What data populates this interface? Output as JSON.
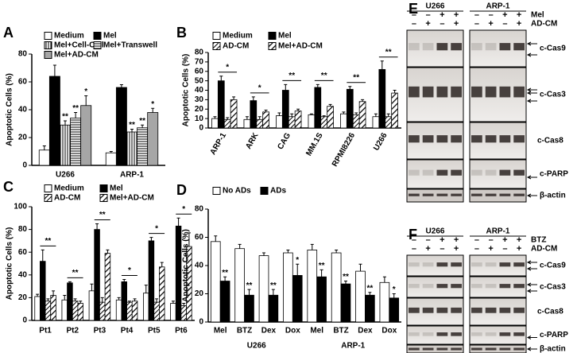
{
  "chart_data": [
    {
      "type": "bar",
      "panel": "A",
      "ylabel": "Apoptotic Cells (%)",
      "categories": [
        "U266",
        "ARP-1"
      ],
      "series": [
        {
          "name": "Medium",
          "color": "#ffffff",
          "pattern": "solid",
          "values": [
            11,
            9
          ],
          "errors": [
            3,
            1
          ]
        },
        {
          "name": "Mel",
          "color": "#000000",
          "pattern": "solid",
          "values": [
            64,
            56
          ],
          "errors": [
            8,
            2
          ]
        },
        {
          "name": "Mel+Cell-Cell",
          "color": "#000000",
          "pattern": "vertical",
          "values": [
            29,
            24
          ],
          "errors": [
            3,
            2
          ],
          "significance": [
            "**",
            "**"
          ]
        },
        {
          "name": "Mel+Transwell",
          "color": "#000000",
          "pattern": "horizontal",
          "values": [
            34,
            27
          ],
          "errors": [
            4,
            2
          ],
          "significance": [
            "**",
            "**"
          ]
        },
        {
          "name": "Mel+AD-CM",
          "color": "#a6a6a6",
          "pattern": "solid",
          "values": [
            43,
            38
          ],
          "errors": [
            7,
            3
          ],
          "significance": [
            "*",
            "*"
          ]
        }
      ],
      "ylim": [
        0,
        80
      ],
      "yticks": [
        0,
        20,
        40,
        60,
        80
      ]
    },
    {
      "type": "bar",
      "panel": "B",
      "ylabel": "Apoptotic Cells (%)",
      "categories": [
        "ARP-1",
        "ARK",
        "CAG",
        "MM.1S",
        "RPMI8226",
        "U266"
      ],
      "series": [
        {
          "name": "Medium",
          "color": "#ffffff",
          "pattern": "solid",
          "values": [
            10,
            9,
            13,
            14,
            15,
            12
          ],
          "errors": [
            2,
            3,
            3,
            1,
            2,
            3
          ]
        },
        {
          "name": "Mel",
          "color": "#000000",
          "pattern": "solid",
          "values": [
            50,
            29,
            40,
            43,
            41,
            62
          ],
          "errors": [
            5,
            4,
            6,
            3,
            3,
            9
          ]
        },
        {
          "name": "AD-CM",
          "color": "#000000",
          "pattern": "diagonal",
          "values": [
            9,
            9,
            12,
            12,
            14,
            12
          ],
          "errors": [
            2,
            3,
            3,
            1,
            2,
            3
          ]
        },
        {
          "name": "Mel+AD-CM",
          "color": "#000000",
          "pattern": "diagonal-wide",
          "values": [
            30,
            17,
            18,
            23,
            28,
            37
          ],
          "errors": [
            3,
            2,
            2,
            2,
            2,
            3
          ]
        }
      ],
      "significance": [
        "*",
        "*",
        "**",
        "**",
        "**",
        "**"
      ],
      "ylim": [
        0,
        80
      ],
      "yticks": [
        0,
        10,
        20,
        30,
        40,
        50,
        60,
        70,
        80
      ]
    },
    {
      "type": "bar",
      "panel": "C",
      "ylabel": "Apoptotic Cells (%)",
      "categories": [
        "Pt1",
        "Pt2",
        "Pt3",
        "Pt4",
        "Pt5",
        "Pt6"
      ],
      "series": [
        {
          "name": "Medium",
          "color": "#ffffff",
          "pattern": "solid",
          "values": [
            21,
            18,
            26,
            18,
            24,
            15
          ],
          "errors": [
            2,
            4,
            6,
            2,
            7,
            2
          ]
        },
        {
          "name": "Mel",
          "color": "#000000",
          "pattern": "solid",
          "values": [
            52,
            33,
            80,
            34,
            70,
            83
          ],
          "errors": [
            10,
            1,
            5,
            2,
            3,
            7
          ]
        },
        {
          "name": "AD-CM",
          "color": "#000000",
          "pattern": "diagonal",
          "values": [
            17,
            17,
            16,
            16,
            16,
            13
          ],
          "errors": [
            2,
            2,
            4,
            1,
            3,
            2
          ]
        },
        {
          "name": "Mel+AD-CM",
          "color": "#000000",
          "pattern": "diagonal-wide",
          "values": [
            22,
            15,
            59,
            17,
            47,
            65
          ],
          "errors": [
            4,
            2,
            3,
            2,
            4,
            12
          ]
        }
      ],
      "significance": [
        "**",
        "**",
        "**",
        "*",
        "*",
        "*"
      ],
      "ylim": [
        0,
        100
      ],
      "yticks": [
        0,
        20,
        40,
        60,
        80,
        100
      ]
    },
    {
      "type": "bar",
      "panel": "D",
      "ylabel": "Apoptotic Cells (%)",
      "categories": [
        "Mel",
        "BTZ",
        "Dex",
        "Dox",
        "Mel",
        "BTZ",
        "Dex",
        "Dox"
      ],
      "group_labels": [
        "U266",
        "ARP-1"
      ],
      "series": [
        {
          "name": "No ADs",
          "color": "#ffffff",
          "pattern": "solid",
          "values": [
            57,
            52,
            47,
            49,
            51,
            49,
            36,
            28
          ],
          "errors": [
            4,
            3,
            2,
            2,
            4,
            2,
            5,
            4
          ]
        },
        {
          "name": "ADs",
          "color": "#000000",
          "pattern": "solid",
          "values": [
            29,
            19,
            19,
            33,
            32,
            27,
            19,
            17
          ],
          "errors": [
            3,
            4,
            4,
            8,
            5,
            2,
            2,
            3
          ],
          "significance": [
            "**",
            "**",
            "**",
            "*",
            "**",
            "**",
            "**",
            "*"
          ]
        }
      ],
      "ylim": [
        0,
        80
      ],
      "yticks": [
        0,
        20,
        40,
        60,
        80
      ]
    }
  ],
  "blots": [
    {
      "panel": "E",
      "lines": [
        "U266",
        "ARP-1"
      ],
      "treatments": [
        {
          "name": "Mel",
          "signs": [
            "–",
            "–",
            "+",
            "+",
            "–",
            "–",
            "+",
            "+"
          ]
        },
        {
          "name": "AD-CM",
          "signs": [
            "–",
            "+",
            "–",
            "+",
            "–",
            "+",
            "–",
            "+"
          ]
        }
      ],
      "bands": [
        "c-Cas9",
        "c-Cas3",
        "c-Cas8",
        "c-PARP",
        "β-actin"
      ]
    },
    {
      "panel": "F",
      "lines": [
        "U266",
        "ARP-1"
      ],
      "treatments": [
        {
          "name": "BTZ",
          "signs": [
            "–",
            "–",
            "+",
            "+",
            "–",
            "–",
            "+",
            "+"
          ]
        },
        {
          "name": "AD-CM",
          "signs": [
            "–",
            "+",
            "–",
            "+",
            "–",
            "+",
            "–",
            "+"
          ]
        }
      ],
      "bands": [
        "c-Cas9",
        "c-Cas3",
        "c-Cas8",
        "c-PARP",
        "β-actin"
      ]
    }
  ]
}
